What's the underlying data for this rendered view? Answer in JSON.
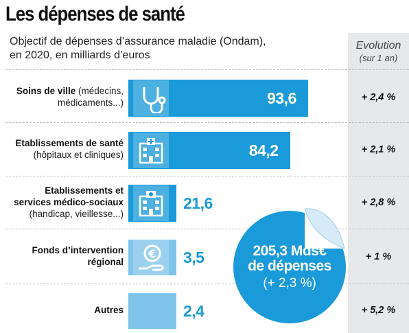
{
  "title": "Les dépenses de santé",
  "subtitle_line1": "Objectif de dépenses d’assurance maladie (Ondam),",
  "subtitle_line2": "en 2020, en milliards d’euros",
  "evolution_header": {
    "title": "Evolution",
    "sub": "(sur 1 an)"
  },
  "categories": [
    {
      "label_bold": "Soins de ville",
      "label_rest": "(médecins, médicaments...)",
      "value_text": "93,6",
      "evolution": "+ 2,4 %",
      "icon": "stethoscope-icon"
    },
    {
      "label_bold": "Etablissements de santé",
      "label_rest": "(hôpitaux et cliniques)",
      "value_text": "84,2",
      "evolution": "+ 2,1 %",
      "icon": "hospital-icon"
    },
    {
      "label_bold": "Etablissements et services médico-sociaux",
      "label_rest": "(handicap, vieillesse...)",
      "value_text": "21,6",
      "evolution": "+ 2,8 %",
      "icon": "care-facility-icon"
    },
    {
      "label_bold": "Fonds d’intervention régional",
      "label_rest": "",
      "value_text": "3,5",
      "evolution": "+ 1 %",
      "icon": "euro-hand-icon"
    },
    {
      "label_bold": "Autres",
      "label_rest": "",
      "value_text": "2,4",
      "evolution": "+ 5,2 %",
      "icon": ""
    }
  ],
  "total": {
    "main_line1": "205,3 Mds€",
    "main_line2": "de dépenses",
    "evolution": "(+ 2,3 %)"
  },
  "colors": {
    "bar": "#1a9ad9",
    "bar_light": "#7fc4ea",
    "evolution_column": "#e6e8ea",
    "text": "#111111"
  },
  "chart_data": {
    "type": "bar",
    "orientation": "horizontal",
    "title": "Les dépenses de santé",
    "subtitle": "Objectif de dépenses d’assurance maladie (Ondam), en 2020, en milliards d’euros",
    "categories": [
      "Soins de ville (médecins, médicaments...)",
      "Etablissements de santé (hôpitaux et cliniques)",
      "Etablissements et services médico-sociaux (handicap, vieillesse...)",
      "Fonds d’intervention régional",
      "Autres"
    ],
    "values": [
      93.6,
      84.2,
      21.6,
      3.5,
      2.4
    ],
    "unit": "milliards d’euros",
    "evolution_pct": [
      2.4,
      2.1,
      2.8,
      1,
      5.2
    ],
    "total": 205.3,
    "total_evolution_pct": 2.3
  }
}
